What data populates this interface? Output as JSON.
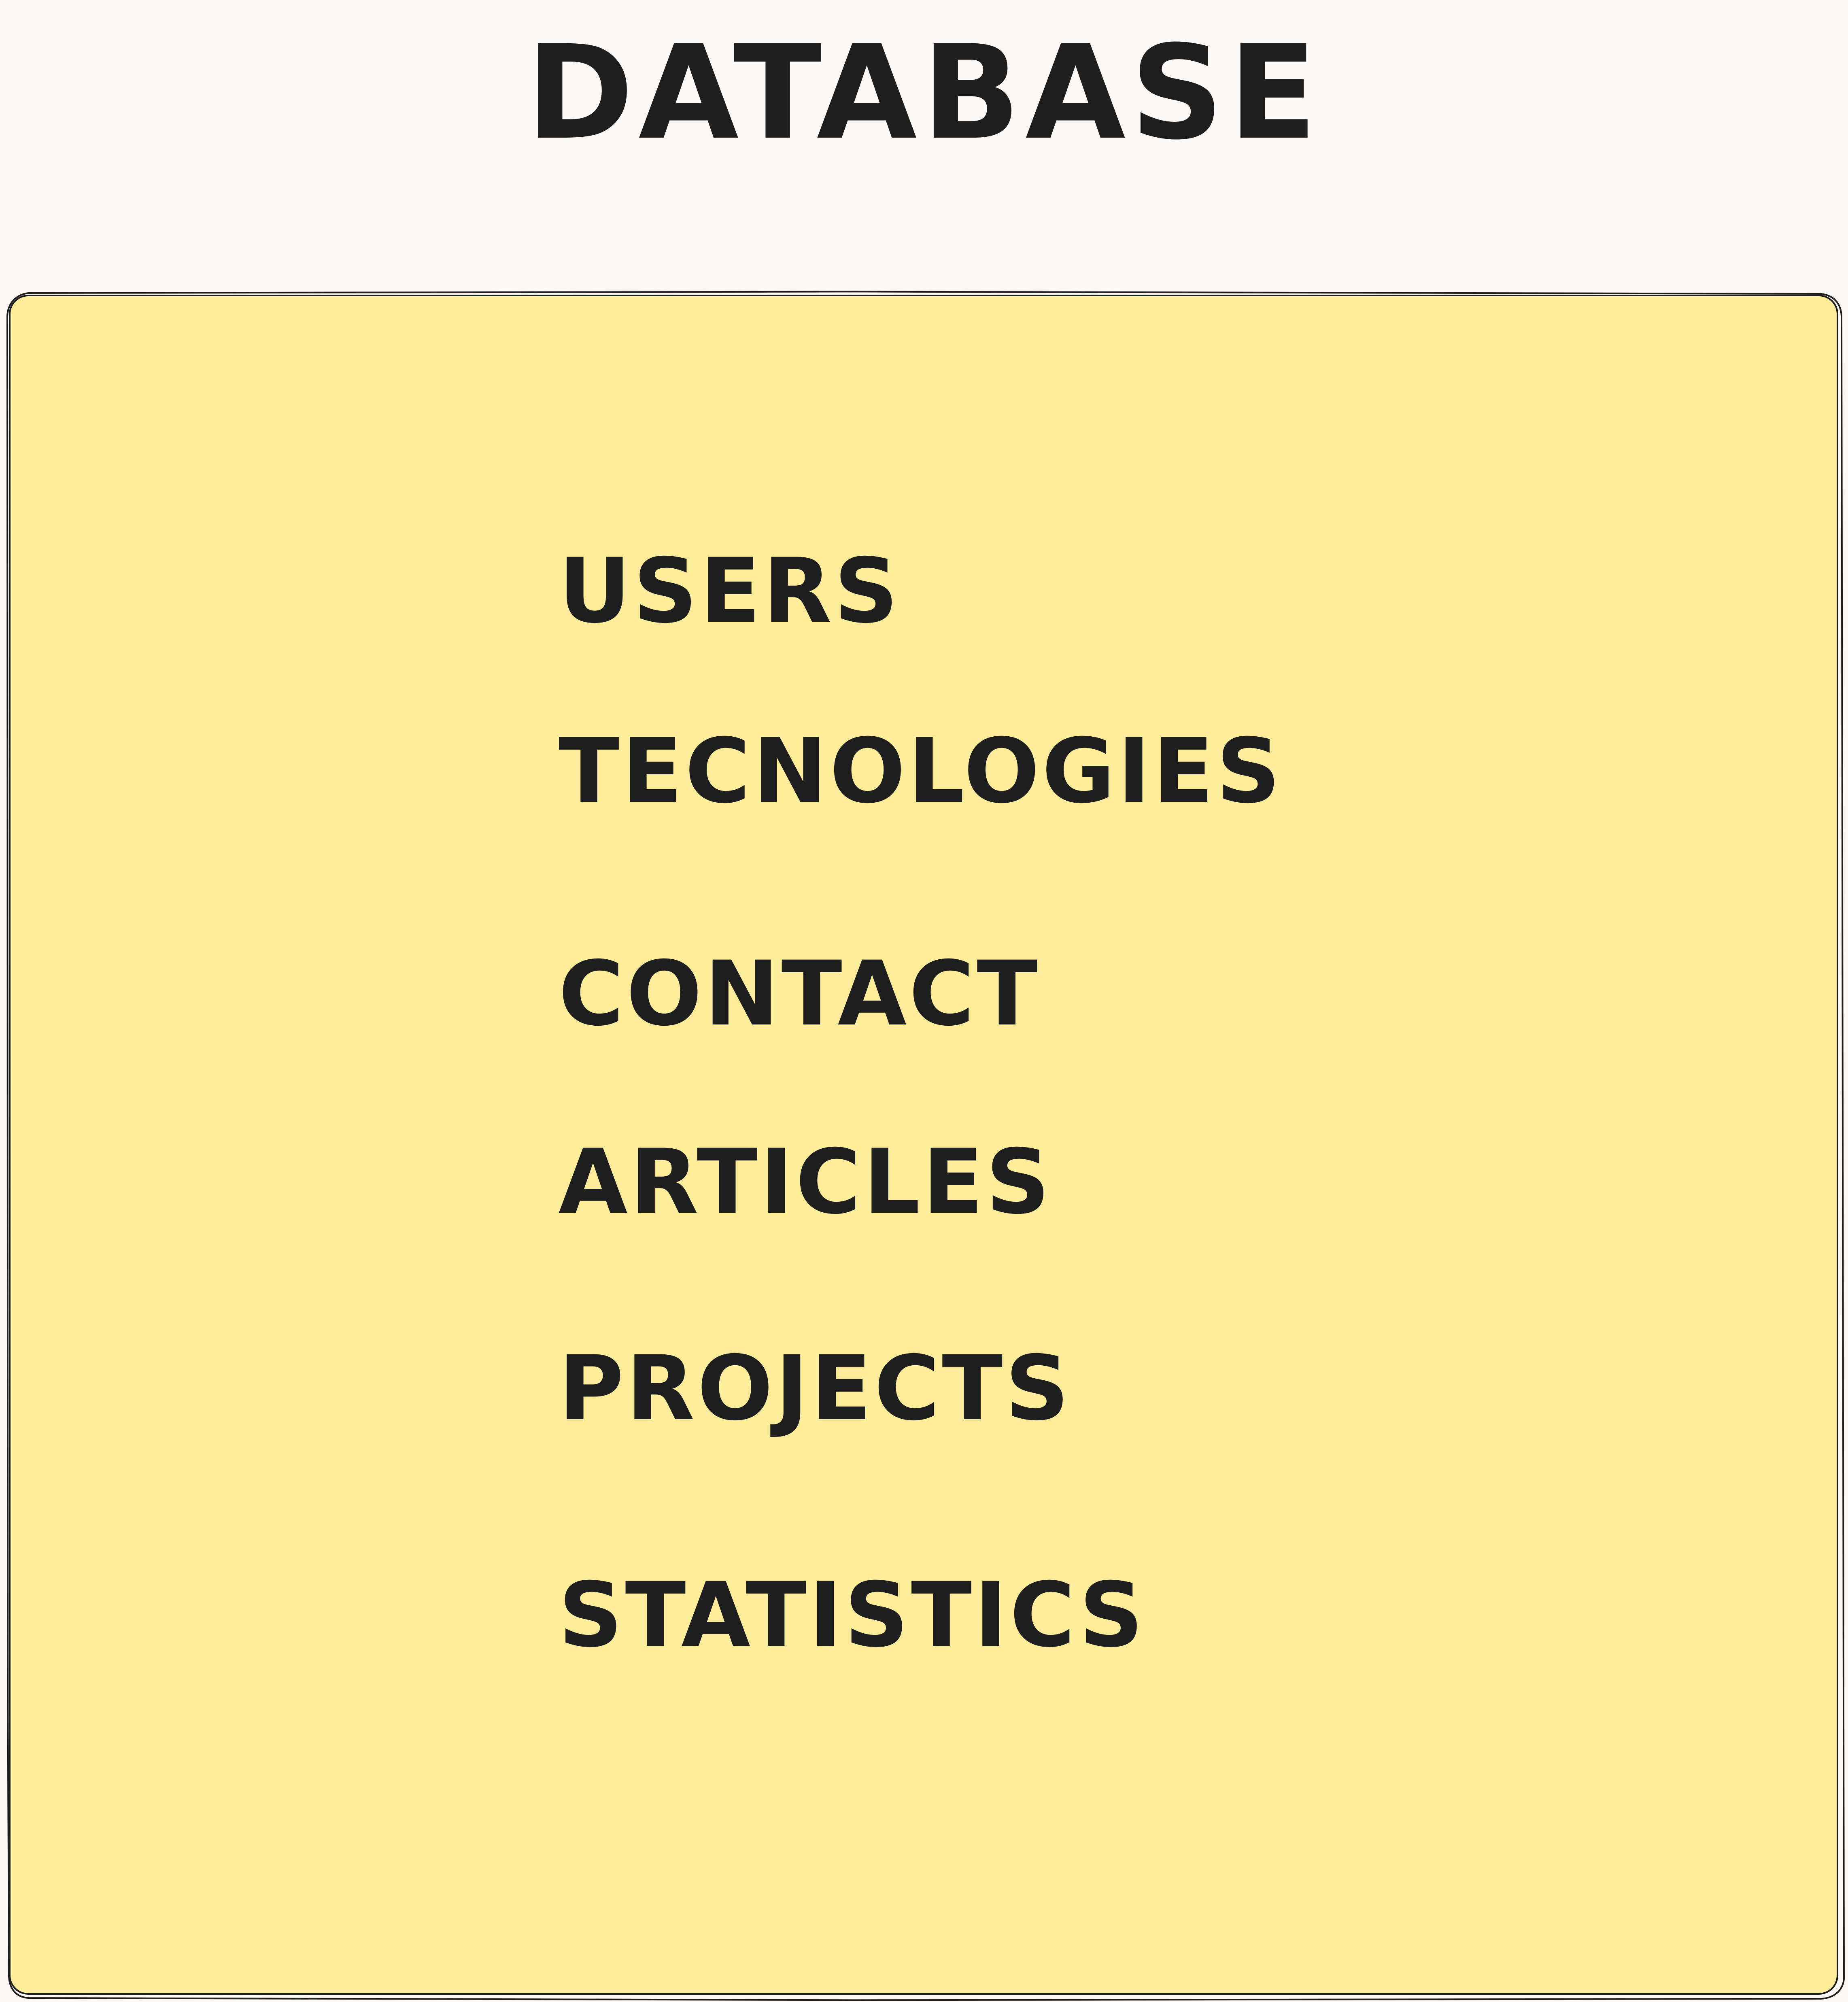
{
  "diagram": {
    "title": "DATABASE",
    "items": [
      {
        "label": "USERS"
      },
      {
        "label": "TECNOLOGIES"
      },
      {
        "label": "CONTACT"
      },
      {
        "label": "ARTICLES"
      },
      {
        "label": "PROJECTS"
      },
      {
        "label": "STATISTICS"
      }
    ],
    "colors": {
      "background": "#fcf9f7",
      "box_fill": "#fdec99",
      "stroke": "#1e1e1e"
    }
  }
}
